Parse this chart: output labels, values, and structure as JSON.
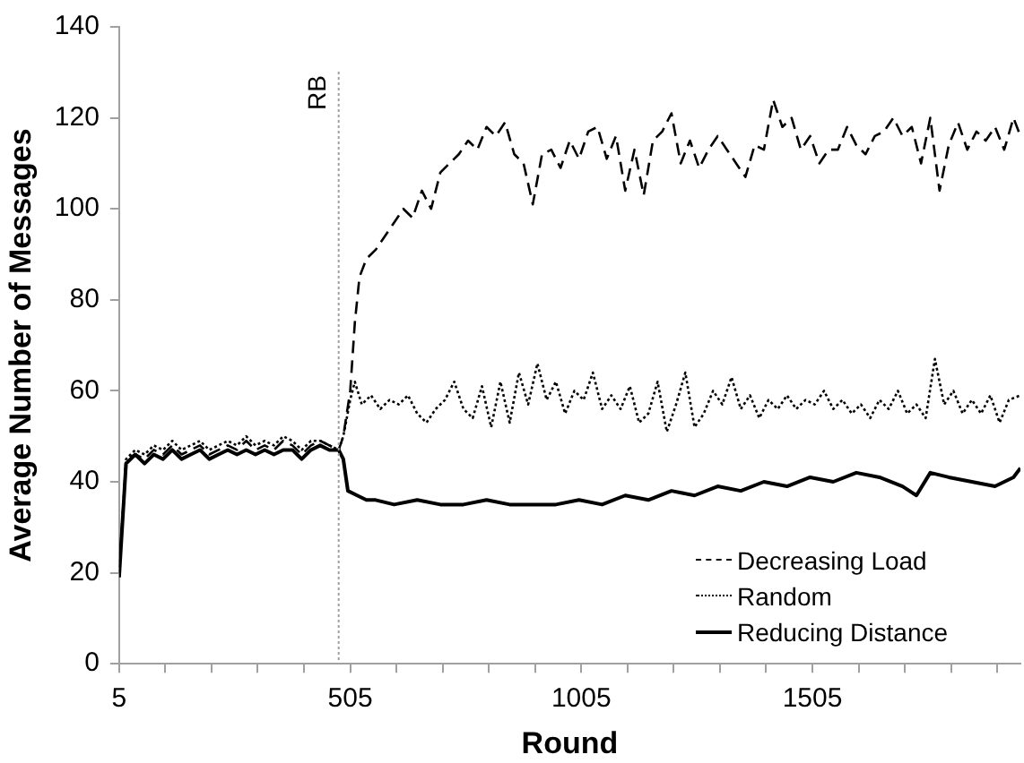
{
  "chart_data": {
    "type": "line",
    "xlabel": "Round",
    "ylabel": "Average Number of Messages",
    "xlim": [
      5,
      1955
    ],
    "xticks": [
      5,
      {
        "value": 105,
        "label": null
      },
      {
        "value": 205,
        "label": null
      },
      {
        "value": 305,
        "label": null
      },
      {
        "value": 405,
        "label": null
      },
      505,
      {
        "value": 605,
        "label": null
      },
      {
        "value": 705,
        "label": null
      },
      {
        "value": 805,
        "label": null
      },
      {
        "value": 905,
        "label": null
      },
      1005,
      {
        "value": 1105,
        "label": null
      },
      {
        "value": 1205,
        "label": null
      },
      {
        "value": 1305,
        "label": null
      },
      {
        "value": 1405,
        "label": null
      },
      1505,
      {
        "value": 1605,
        "label": null
      },
      {
        "value": 1705,
        "label": null
      },
      {
        "value": 1805,
        "label": null
      },
      {
        "value": 1905,
        "label": null
      }
    ],
    "ylim": [
      0,
      140
    ],
    "yticks": [
      0,
      20,
      40,
      60,
      80,
      100,
      120,
      140
    ],
    "grid": false,
    "legend": "bottom right",
    "marker": "none",
    "ref_lines": [
      {
        "axis": "x",
        "value": 480,
        "label": "RB",
        "color": "#a0a0a0",
        "line_style": "dotted"
      }
    ],
    "series": [
      {
        "name": "Decreasing Load",
        "color": "#000000",
        "line_style": "dashed",
        "x": [
          5,
          20,
          40,
          60,
          80,
          100,
          120,
          140,
          160,
          180,
          200,
          220,
          240,
          260,
          280,
          300,
          320,
          340,
          360,
          380,
          400,
          420,
          440,
          460,
          480,
          490,
          505,
          515,
          525,
          540,
          560,
          580,
          600,
          620,
          640,
          660,
          680,
          700,
          720,
          740,
          760,
          780,
          800,
          820,
          840,
          860,
          880,
          900,
          920,
          940,
          960,
          980,
          1000,
          1020,
          1040,
          1060,
          1080,
          1100,
          1120,
          1140,
          1160,
          1180,
          1200,
          1220,
          1240,
          1260,
          1280,
          1300,
          1320,
          1340,
          1360,
          1380,
          1400,
          1420,
          1440,
          1460,
          1480,
          1500,
          1520,
          1540,
          1560,
          1580,
          1600,
          1620,
          1640,
          1660,
          1680,
          1700,
          1720,
          1740,
          1760,
          1780,
          1800,
          1820,
          1840,
          1860,
          1880,
          1900,
          1920,
          1940,
          1955
        ],
        "values": [
          20,
          45,
          46,
          45,
          47,
          46,
          48,
          46,
          47,
          48,
          46,
          47,
          48,
          47,
          49,
          47,
          48,
          47,
          49,
          48,
          46,
          48,
          49,
          48,
          47,
          50,
          60,
          75,
          85,
          89,
          91,
          94,
          97,
          100,
          98,
          104,
          100,
          108,
          110,
          112,
          115,
          113,
          118,
          116,
          119,
          112,
          110,
          101,
          112,
          113,
          109,
          115,
          111,
          117,
          118,
          111,
          116,
          104,
          113,
          103,
          115,
          117,
          121,
          110,
          115,
          109,
          113,
          116,
          113,
          110,
          107,
          114,
          113,
          124,
          118,
          120,
          113,
          116,
          110,
          113,
          113,
          118,
          114,
          112,
          116,
          117,
          120,
          116,
          118,
          110,
          120,
          104,
          114,
          119,
          113,
          117,
          115,
          118,
          113,
          120,
          116
        ]
      },
      {
        "name": "Random",
        "color": "#000000",
        "line_style": "dotted",
        "x": [
          5,
          20,
          40,
          60,
          80,
          100,
          120,
          140,
          160,
          180,
          200,
          220,
          240,
          260,
          280,
          300,
          320,
          340,
          360,
          380,
          400,
          420,
          440,
          460,
          480,
          490,
          505,
          515,
          530,
          550,
          570,
          590,
          610,
          630,
          650,
          670,
          690,
          710,
          730,
          750,
          770,
          790,
          810,
          830,
          850,
          870,
          890,
          910,
          930,
          950,
          970,
          990,
          1010,
          1030,
          1050,
          1070,
          1090,
          1110,
          1130,
          1150,
          1170,
          1190,
          1210,
          1230,
          1250,
          1270,
          1290,
          1310,
          1330,
          1350,
          1370,
          1390,
          1410,
          1430,
          1450,
          1470,
          1490,
          1510,
          1530,
          1550,
          1570,
          1590,
          1610,
          1630,
          1650,
          1670,
          1690,
          1710,
          1730,
          1750,
          1770,
          1790,
          1810,
          1830,
          1850,
          1870,
          1890,
          1910,
          1930,
          1955
        ],
        "values": [
          20,
          45,
          47,
          46,
          48,
          47,
          49,
          47,
          48,
          49,
          47,
          48,
          49,
          48,
          50,
          48,
          49,
          48,
          50,
          49,
          47,
          49,
          49,
          48,
          47,
          50,
          58,
          62,
          57,
          59,
          56,
          58,
          57,
          59,
          55,
          53,
          56,
          58,
          62,
          56,
          54,
          61,
          52,
          62,
          53,
          64,
          57,
          66,
          58,
          62,
          55,
          60,
          58,
          64,
          56,
          59,
          56,
          61,
          53,
          55,
          62,
          51,
          57,
          64,
          52,
          55,
          60,
          57,
          63,
          56,
          59,
          54,
          58,
          56,
          59,
          56,
          58,
          57,
          60,
          56,
          58,
          55,
          57,
          54,
          58,
          56,
          60,
          55,
          57,
          54,
          67,
          57,
          60,
          55,
          58,
          55,
          59,
          53,
          58,
          59
        ]
      },
      {
        "name": "Reducing Distance",
        "color": "#000000",
        "line_style": "solid",
        "x": [
          5,
          20,
          40,
          60,
          80,
          100,
          120,
          140,
          160,
          180,
          200,
          220,
          240,
          260,
          280,
          300,
          320,
          340,
          360,
          380,
          400,
          420,
          440,
          460,
          480,
          490,
          500,
          520,
          540,
          560,
          600,
          650,
          700,
          750,
          800,
          850,
          900,
          950,
          1000,
          1050,
          1100,
          1150,
          1200,
          1250,
          1300,
          1350,
          1400,
          1450,
          1500,
          1550,
          1600,
          1650,
          1700,
          1730,
          1760,
          1800,
          1850,
          1900,
          1940,
          1955
        ],
        "values": [
          19,
          44,
          46,
          44,
          46,
          45,
          47,
          45,
          46,
          47,
          45,
          46,
          47,
          46,
          47,
          46,
          47,
          46,
          47,
          47,
          45,
          47,
          48,
          47,
          47,
          45,
          38,
          37,
          36,
          36,
          35,
          36,
          35,
          35,
          36,
          35,
          35,
          35,
          36,
          35,
          37,
          36,
          38,
          37,
          39,
          38,
          40,
          39,
          41,
          40,
          42,
          41,
          39,
          37,
          42,
          41,
          40,
          39,
          41,
          43
        ]
      }
    ]
  }
}
